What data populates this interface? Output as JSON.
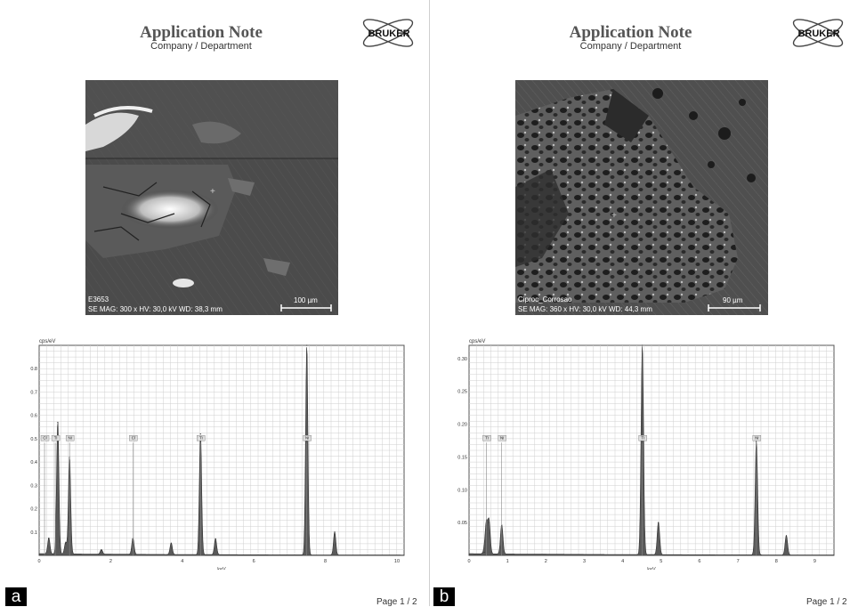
{
  "panels": [
    {
      "letter": "a",
      "title": "Application Note",
      "subtitle": "Company / Department",
      "logo_text": "BRUKER",
      "sem": {
        "sample_name": "E3653",
        "params": "SE  MAG: 300 x  HV: 30,0 kV  WD: 38,3 mm",
        "scale_bar": "100 µm"
      },
      "footer": "Page 1 / 2"
    },
    {
      "letter": "b",
      "title": "Application Note",
      "subtitle": "Company / Department",
      "logo_text": "BRUKER",
      "sem": {
        "sample_name": "Ciproc_Corrosao",
        "params": "SE  MAG: 360 x  HV: 30,0 kV  WD: 44,3 mm",
        "scale_bar": "90 µm"
      },
      "footer": "Page 1 / 2"
    }
  ],
  "chart_data": [
    {
      "type": "line",
      "ylabel_unit": "cps/eV",
      "xlabel": "keV",
      "xlim": [
        0,
        10.2
      ],
      "ylim": [
        0,
        0.9
      ],
      "x_ticks": [
        0,
        2,
        4,
        6,
        8,
        10
      ],
      "y_ticks": [
        0.1,
        0.2,
        0.3,
        0.4,
        0.5,
        0.6,
        0.7,
        0.8
      ],
      "peaks": [
        {
          "x": 0.27,
          "y": 0.07
        },
        {
          "x": 0.52,
          "y": 0.57
        },
        {
          "x": 0.74,
          "y": 0.05
        },
        {
          "x": 0.85,
          "y": 0.42
        },
        {
          "x": 1.74,
          "y": 0.02
        },
        {
          "x": 2.62,
          "y": 0.07
        },
        {
          "x": 3.69,
          "y": 0.05
        },
        {
          "x": 4.51,
          "y": 0.52
        },
        {
          "x": 4.93,
          "y": 0.07
        },
        {
          "x": 7.48,
          "y": 0.9
        },
        {
          "x": 8.26,
          "y": 0.1
        }
      ],
      "annotations": [
        {
          "label": "Cl",
          "x": 0.15
        },
        {
          "label": "Ti",
          "x": 0.45
        },
        {
          "label": "Ni",
          "x": 0.85
        },
        {
          "label": "Cl",
          "x": 2.62
        },
        {
          "label": "Ti",
          "x": 4.51
        },
        {
          "label": "Ni",
          "x": 7.48
        }
      ]
    },
    {
      "type": "line",
      "ylabel_unit": "cps/eV",
      "xlabel": "keV",
      "xlim": [
        0,
        9.5
      ],
      "ylim": [
        0,
        0.32
      ],
      "x_ticks": [
        0,
        1,
        2,
        3,
        4,
        5,
        6,
        7,
        8,
        9
      ],
      "y_ticks": [
        0.05,
        0.1,
        0.15,
        0.2,
        0.25,
        0.3
      ],
      "peaks": [
        {
          "x": 0.4,
          "y": 0.005
        },
        {
          "x": 0.45,
          "y": 0.045
        },
        {
          "x": 0.52,
          "y": 0.05
        },
        {
          "x": 0.85,
          "y": 0.045
        },
        {
          "x": 4.51,
          "y": 0.32
        },
        {
          "x": 4.93,
          "y": 0.05
        },
        {
          "x": 7.48,
          "y": 0.175
        },
        {
          "x": 8.26,
          "y": 0.03
        }
      ],
      "annotations": [
        {
          "label": "Ti",
          "x": 0.45
        },
        {
          "label": "Ni",
          "x": 0.85
        },
        {
          "label": "Ti",
          "x": 4.51
        },
        {
          "label": "Ni",
          "x": 7.48
        }
      ]
    }
  ]
}
